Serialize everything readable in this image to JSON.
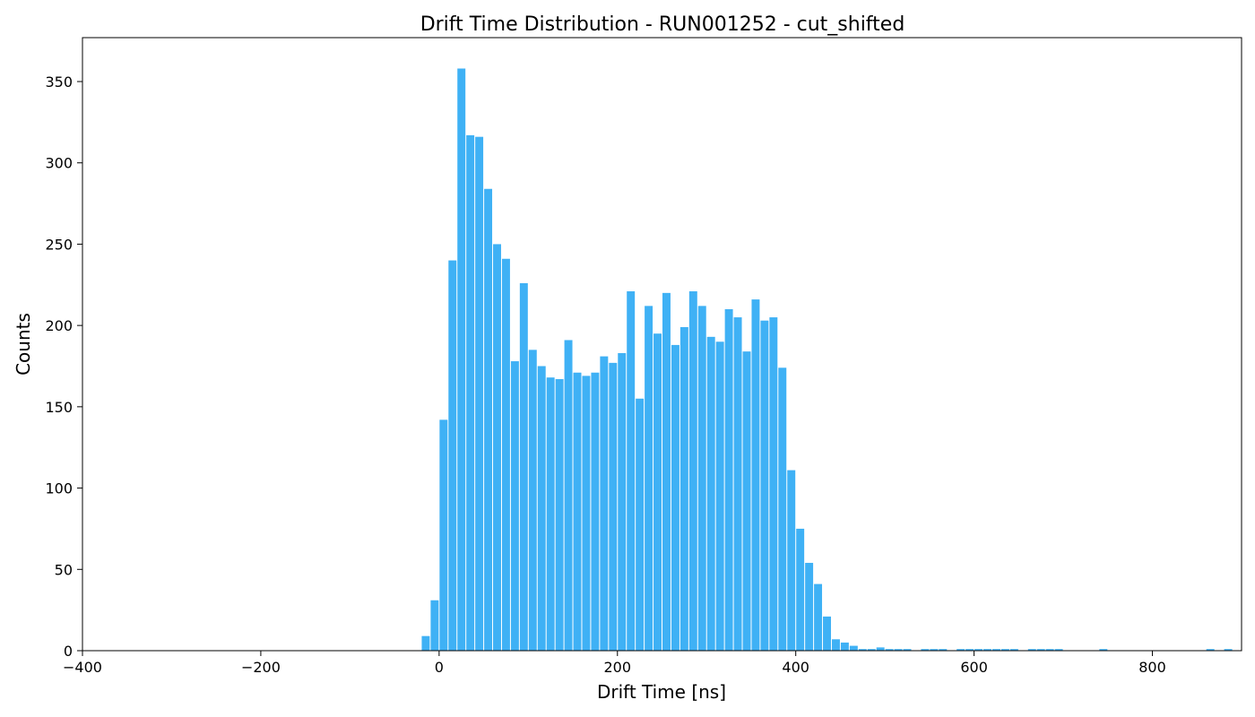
{
  "chart_data": {
    "type": "bar",
    "title": "Drift Time Distribution - RUN001252 - cut_shifted",
    "xlabel": "Drift Time [ns]",
    "ylabel": "Counts",
    "xlim": [
      -400,
      900
    ],
    "ylim": [
      0,
      377
    ],
    "xticks": [
      -400,
      -200,
      0,
      200,
      400,
      600,
      800
    ],
    "xtick_labels": [
      "−400",
      "−200",
      "0",
      "200",
      "400",
      "600",
      "800"
    ],
    "yticks": [
      0,
      50,
      100,
      150,
      200,
      250,
      300,
      350
    ],
    "ytick_labels": [
      "0",
      "50",
      "100",
      "150",
      "200",
      "250",
      "300",
      "350"
    ],
    "grid": false,
    "bar_color": "#3fb1f5",
    "bin_width": 10,
    "bins": [
      {
        "x": -20,
        "y": 9
      },
      {
        "x": -10,
        "y": 31
      },
      {
        "x": 0,
        "y": 142
      },
      {
        "x": 10,
        "y": 240
      },
      {
        "x": 20,
        "y": 358
      },
      {
        "x": 30,
        "y": 317
      },
      {
        "x": 40,
        "y": 316
      },
      {
        "x": 50,
        "y": 284
      },
      {
        "x": 60,
        "y": 250
      },
      {
        "x": 70,
        "y": 241
      },
      {
        "x": 80,
        "y": 178
      },
      {
        "x": 90,
        "y": 226
      },
      {
        "x": 100,
        "y": 185
      },
      {
        "x": 110,
        "y": 175
      },
      {
        "x": 120,
        "y": 168
      },
      {
        "x": 130,
        "y": 167
      },
      {
        "x": 140,
        "y": 191
      },
      {
        "x": 150,
        "y": 171
      },
      {
        "x": 160,
        "y": 169
      },
      {
        "x": 170,
        "y": 171
      },
      {
        "x": 180,
        "y": 181
      },
      {
        "x": 190,
        "y": 177
      },
      {
        "x": 200,
        "y": 183
      },
      {
        "x": 210,
        "y": 221
      },
      {
        "x": 220,
        "y": 155
      },
      {
        "x": 230,
        "y": 212
      },
      {
        "x": 240,
        "y": 195
      },
      {
        "x": 250,
        "y": 220
      },
      {
        "x": 260,
        "y": 188
      },
      {
        "x": 270,
        "y": 199
      },
      {
        "x": 280,
        "y": 221
      },
      {
        "x": 290,
        "y": 212
      },
      {
        "x": 300,
        "y": 193
      },
      {
        "x": 310,
        "y": 190
      },
      {
        "x": 320,
        "y": 210
      },
      {
        "x": 330,
        "y": 205
      },
      {
        "x": 340,
        "y": 184
      },
      {
        "x": 350,
        "y": 216
      },
      {
        "x": 360,
        "y": 203
      },
      {
        "x": 370,
        "y": 205
      },
      {
        "x": 380,
        "y": 174
      },
      {
        "x": 390,
        "y": 111
      },
      {
        "x": 400,
        "y": 75
      },
      {
        "x": 410,
        "y": 54
      },
      {
        "x": 420,
        "y": 41
      },
      {
        "x": 430,
        "y": 21
      },
      {
        "x": 440,
        "y": 7
      },
      {
        "x": 450,
        "y": 5
      },
      {
        "x": 460,
        "y": 3
      },
      {
        "x": 470,
        "y": 1
      },
      {
        "x": 480,
        "y": 1
      },
      {
        "x": 490,
        "y": 2
      },
      {
        "x": 500,
        "y": 1
      },
      {
        "x": 510,
        "y": 1
      },
      {
        "x": 520,
        "y": 1
      },
      {
        "x": 540,
        "y": 1
      },
      {
        "x": 550,
        "y": 1
      },
      {
        "x": 560,
        "y": 1
      },
      {
        "x": 580,
        "y": 1
      },
      {
        "x": 590,
        "y": 1
      },
      {
        "x": 600,
        "y": 1
      },
      {
        "x": 610,
        "y": 1
      },
      {
        "x": 620,
        "y": 1
      },
      {
        "x": 630,
        "y": 1
      },
      {
        "x": 640,
        "y": 1
      },
      {
        "x": 660,
        "y": 1
      },
      {
        "x": 670,
        "y": 1
      },
      {
        "x": 680,
        "y": 1
      },
      {
        "x": 690,
        "y": 1
      },
      {
        "x": 740,
        "y": 1
      },
      {
        "x": 860,
        "y": 1
      },
      {
        "x": 880,
        "y": 1
      }
    ]
  }
}
